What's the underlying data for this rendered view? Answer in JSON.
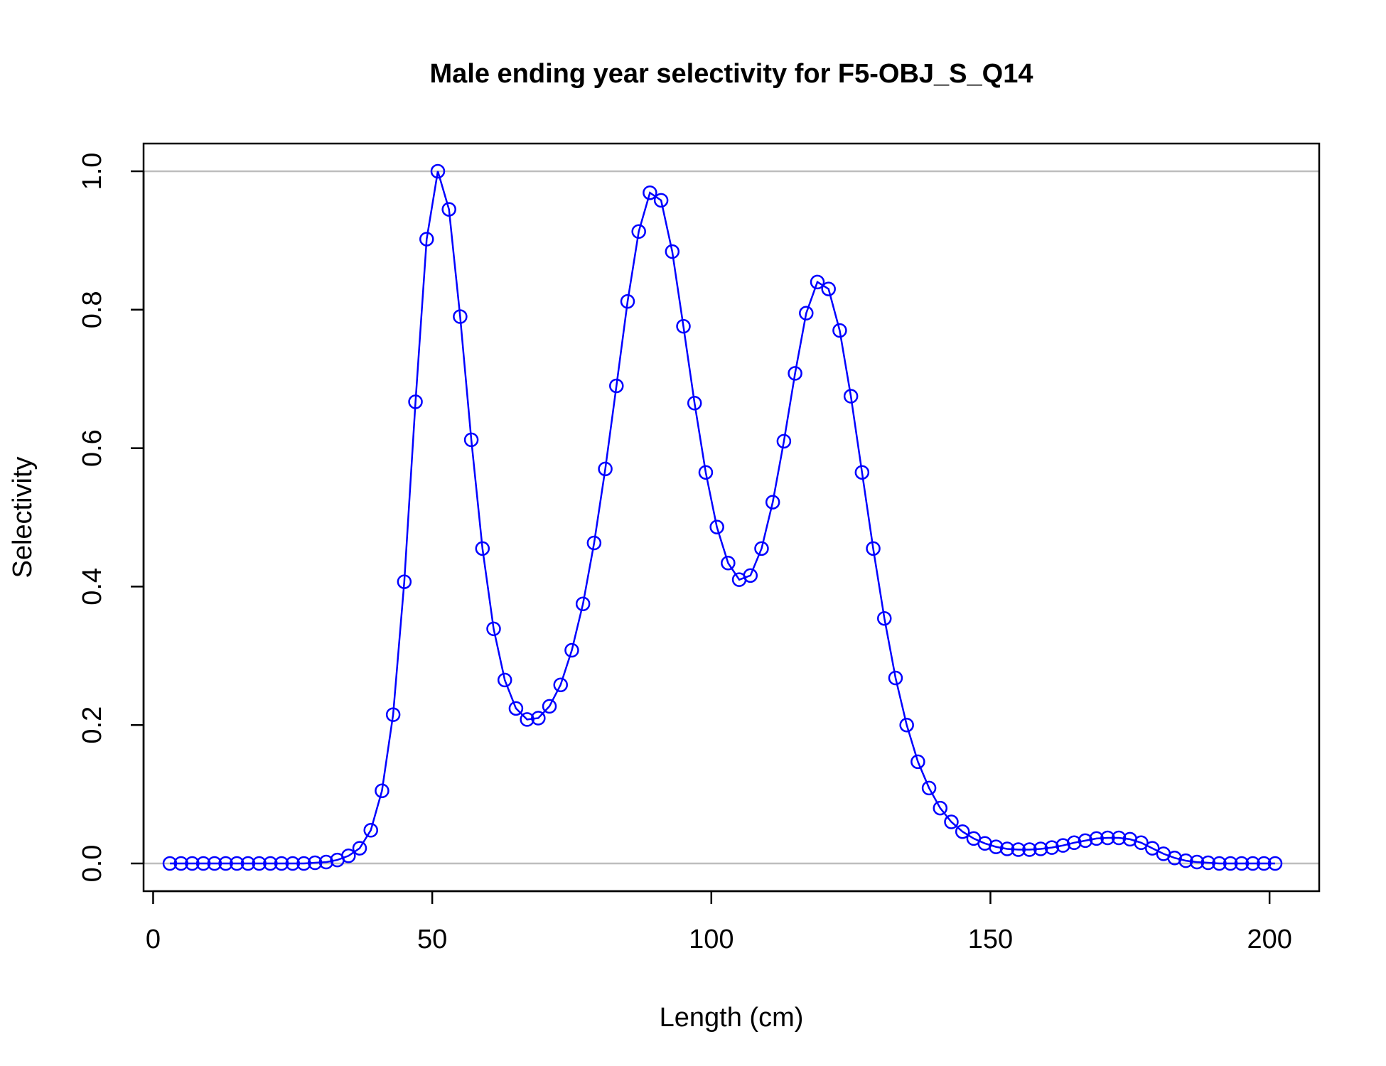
{
  "chart_data": {
    "type": "line",
    "title": "Male ending year selectivity for F5-OBJ_S_Q14",
    "xlabel": "Length (cm)",
    "ylabel": "Selectivity",
    "xlim": [
      3,
      201
    ],
    "ylim": [
      0,
      1
    ],
    "x_ticks": [
      0,
      50,
      100,
      150,
      200
    ],
    "y_ticks": [
      0.0,
      0.2,
      0.4,
      0.6,
      0.8,
      1.0
    ],
    "x_tick_labels": [
      "0",
      "50",
      "100",
      "150",
      "200"
    ],
    "y_tick_labels": [
      "0.0",
      "0.2",
      "0.4",
      "0.6",
      "0.8",
      "1.0"
    ],
    "reference_lines_y": [
      0,
      1
    ],
    "grid": false,
    "legend": "none",
    "markers": "open-circle",
    "colors": {
      "series": "#0000ff",
      "reference_line": "#bebebe",
      "frame": "#000000"
    },
    "series": [
      {
        "x": [
          3,
          5,
          7,
          9,
          11,
          13,
          15,
          17,
          19,
          21,
          23,
          25,
          27,
          29,
          31,
          33,
          35,
          37,
          39,
          41,
          43,
          45,
          47,
          49,
          51,
          53,
          55,
          57,
          59,
          61,
          63,
          65,
          67,
          69,
          71,
          73,
          75,
          77,
          79,
          81,
          83,
          85,
          87,
          89,
          91,
          93,
          95,
          97,
          99,
          101,
          103,
          105,
          107,
          109,
          111,
          113,
          115,
          117,
          119,
          121,
          123,
          125,
          127,
          129,
          131,
          133,
          135,
          137,
          139,
          141,
          143,
          145,
          147,
          149,
          151,
          153,
          155,
          157,
          159,
          161,
          163,
          165,
          167,
          169,
          171,
          173,
          175,
          177,
          179,
          181,
          183,
          185,
          187,
          189,
          191,
          193,
          195,
          197,
          199,
          201
        ],
        "values": [
          0.0,
          0.0,
          0.0,
          0.0,
          0.0,
          0.0,
          0.0,
          0.0,
          0.0,
          0.0,
          0.0,
          0.0,
          0.0,
          0.001,
          0.002,
          0.005,
          0.011,
          0.022,
          0.048,
          0.105,
          0.215,
          0.407,
          0.667,
          0.902,
          1.0,
          0.945,
          0.79,
          0.612,
          0.455,
          0.339,
          0.265,
          0.224,
          0.208,
          0.21,
          0.227,
          0.258,
          0.308,
          0.375,
          0.463,
          0.57,
          0.69,
          0.812,
          0.913,
          0.969,
          0.958,
          0.884,
          0.776,
          0.665,
          0.565,
          0.486,
          0.434,
          0.41,
          0.416,
          0.455,
          0.522,
          0.61,
          0.708,
          0.795,
          0.84,
          0.83,
          0.77,
          0.675,
          0.565,
          0.455,
          0.354,
          0.268,
          0.2,
          0.147,
          0.109,
          0.08,
          0.06,
          0.046,
          0.036,
          0.029,
          0.024,
          0.021,
          0.02,
          0.02,
          0.021,
          0.023,
          0.026,
          0.03,
          0.033,
          0.036,
          0.037,
          0.037,
          0.035,
          0.03,
          0.022,
          0.014,
          0.008,
          0.004,
          0.002,
          0.001,
          0.0,
          0.0,
          0.0,
          0.0,
          0.0,
          0.0
        ]
      }
    ]
  }
}
